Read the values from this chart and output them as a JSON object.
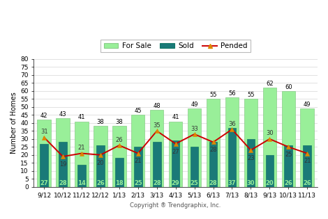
{
  "categories": [
    "9/12",
    "10/12",
    "11/12",
    "12/12",
    "1/13",
    "2/13",
    "3/13",
    "4/13",
    "5/13",
    "6/13",
    "7/13",
    "8/13",
    "9/13",
    "10/13",
    "11/13"
  ],
  "for_sale": [
    42,
    43,
    41,
    38,
    38,
    45,
    48,
    41,
    49,
    55,
    56,
    55,
    62,
    60,
    49
  ],
  "sold": [
    27,
    28,
    14,
    26,
    18,
    25,
    28,
    29,
    25,
    28,
    37,
    30,
    20,
    26,
    26
  ],
  "pended": [
    31,
    19,
    21,
    20,
    26,
    21,
    35,
    27,
    33,
    28,
    36,
    23,
    30,
    25,
    21
  ],
  "for_sale_color": "#99ef99",
  "sold_color": "#1a7a78",
  "pended_line_color": "#cc0000",
  "pended_marker_color": "#dd8800",
  "ylabel": "Number of Homes",
  "xlabel": "Copyright ® Trendgraphix, Inc.",
  "ylim": [
    0,
    80
  ],
  "yticks": [
    0,
    5,
    10,
    15,
    20,
    25,
    30,
    35,
    40,
    45,
    50,
    55,
    60,
    65,
    70,
    75,
    80
  ],
  "legend_for_sale": "For Sale",
  "legend_sold": "Sold",
  "legend_pended": "Pended",
  "bar_width": 0.72,
  "fontsize_labels": 6.0,
  "fontsize_axis": 6.5,
  "background_color": "#ffffff"
}
